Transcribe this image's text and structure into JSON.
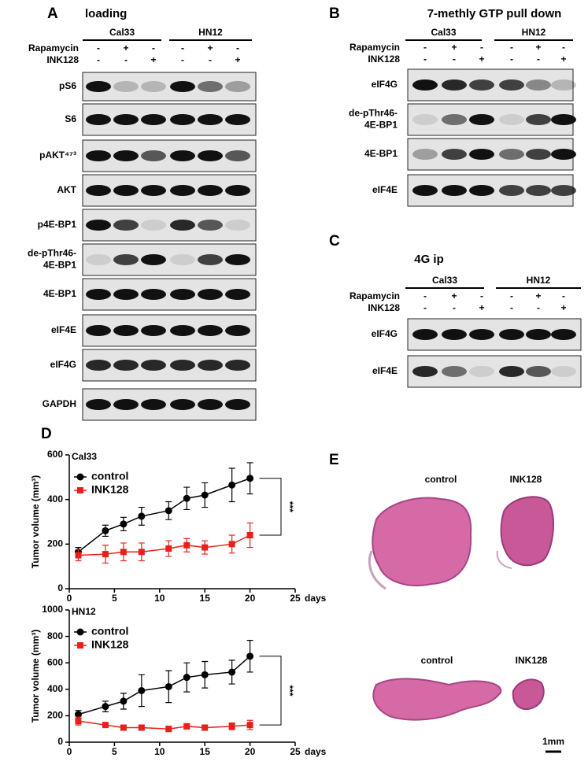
{
  "panels": {
    "A": {
      "letter": "A",
      "title": "loading",
      "groups": [
        "Cal33",
        "HN12"
      ],
      "treatments": [
        {
          "name": "Rapamycin",
          "signs": [
            "-",
            "+",
            "-",
            "-",
            "+",
            "-"
          ]
        },
        {
          "name": "INK128",
          "signs": [
            "-",
            "-",
            "+",
            "-",
            "-",
            "+"
          ]
        }
      ],
      "rows": [
        [
          "pS6"
        ],
        [
          "S6"
        ],
        [
          "pAKT⁴⁷³"
        ],
        [
          "AKT"
        ],
        [
          "p4E-BP1"
        ],
        [
          "de-pThr46-",
          "4E-BP1"
        ],
        [
          "4E-BP1"
        ],
        [
          "eIF4E"
        ],
        [
          "eIF4G"
        ],
        [
          "GAPDH"
        ]
      ]
    },
    "B": {
      "letter": "B",
      "title": "7-methly GTP pull down",
      "groups": [
        "Cal33",
        "HN12"
      ],
      "treatments": [
        {
          "name": "Rapamycin",
          "signs": [
            "-",
            "+",
            "-",
            "-",
            "+",
            "-"
          ]
        },
        {
          "name": "INK128",
          "signs": [
            "-",
            "-",
            "+",
            "-",
            "-",
            "+"
          ]
        }
      ],
      "rows": [
        [
          "eIF4G"
        ],
        [
          "de-pThr46-",
          "4E-BP1"
        ],
        [
          "4E-BP1"
        ],
        [
          "eIF4E"
        ]
      ]
    },
    "C": {
      "letter": "C",
      "title": "4G ip",
      "groups": [
        "Cal33",
        "HN12"
      ],
      "treatments": [
        {
          "name": "Rapamycin",
          "signs": [
            "-",
            "+",
            "-",
            "-",
            "+",
            "-"
          ]
        },
        {
          "name": "INK128",
          "signs": [
            "-",
            "-",
            "+",
            "-",
            "-",
            "+"
          ]
        }
      ],
      "rows": [
        [
          "eIF4G"
        ],
        [
          "eIF4E"
        ]
      ]
    },
    "D": {
      "letter": "D"
    },
    "E": {
      "letter": "E",
      "labels": [
        "control",
        "INK128",
        "control",
        "INK128"
      ],
      "scale": "1mm"
    }
  },
  "chart_data": [
    {
      "type": "line",
      "subtitle": "Cal33",
      "y_label": "Tumor volume (mm³)",
      "x_label": "days",
      "legend": "upper left",
      "annotation": "***",
      "x": [
        1,
        4,
        6,
        8,
        11,
        13,
        15,
        18,
        20
      ],
      "series": [
        {
          "name": "control",
          "color": "#000000",
          "marker": "circle",
          "values": [
            165,
            260,
            290,
            325,
            350,
            405,
            420,
            465,
            495
          ],
          "errors": [
            20,
            25,
            30,
            40,
            40,
            50,
            55,
            75,
            70
          ]
        },
        {
          "name": "INK128",
          "color": "#e8201c",
          "marker": "square",
          "values": [
            150,
            155,
            165,
            165,
            180,
            195,
            185,
            200,
            240
          ],
          "errors": [
            25,
            40,
            40,
            40,
            35,
            30,
            30,
            40,
            55
          ]
        }
      ],
      "xlim": [
        0,
        25
      ],
      "xticks": [
        0,
        5,
        10,
        15,
        20,
        25
      ],
      "ylim": [
        0,
        600
      ],
      "yticks": [
        0,
        200,
        400,
        600
      ]
    },
    {
      "type": "line",
      "subtitle": "HN12",
      "y_label": "Tumor volume (mm³)",
      "x_label": "days",
      "legend": "upper left",
      "annotation": "***",
      "x": [
        1,
        4,
        6,
        8,
        11,
        13,
        15,
        18,
        20
      ],
      "series": [
        {
          "name": "control",
          "color": "#000000",
          "marker": "circle",
          "values": [
            210,
            270,
            310,
            390,
            420,
            490,
            510,
            530,
            650
          ],
          "errors": [
            30,
            40,
            60,
            120,
            120,
            110,
            100,
            90,
            120
          ]
        },
        {
          "name": "INK128",
          "color": "#e8201c",
          "marker": "square",
          "values": [
            160,
            130,
            110,
            110,
            100,
            120,
            110,
            120,
            130
          ],
          "errors": [
            30,
            15,
            15,
            15,
            20,
            20,
            20,
            25,
            35
          ]
        }
      ],
      "xlim": [
        0,
        25
      ],
      "xticks": [
        0,
        5,
        10,
        15,
        20,
        25
      ],
      "ylim": [
        0,
        1000
      ],
      "yticks": [
        0,
        200,
        400,
        600,
        800,
        1000
      ]
    }
  ]
}
